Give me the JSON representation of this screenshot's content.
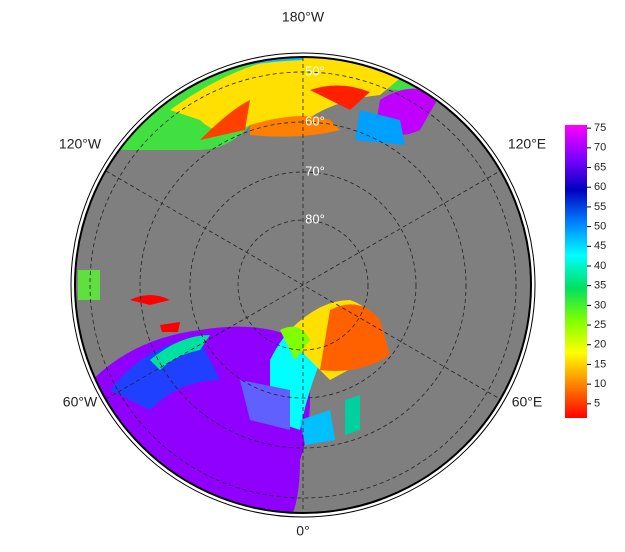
{
  "map": {
    "lon_labels": [
      "180°W",
      "120°W",
      "120°E",
      "60°W",
      "60°E",
      "0°"
    ],
    "lat_labels": [
      "50°",
      "60°",
      "70°",
      "80°"
    ],
    "colorbar": {
      "range": [
        1.4,
        75.8
      ],
      "ticks": [
        5,
        10,
        15,
        20,
        25,
        30,
        35,
        40,
        45,
        50,
        55,
        60,
        65,
        70,
        75
      ],
      "colors": [
        "#ff0000",
        "#ff8000",
        "#ffff00",
        "#80ff00",
        "#00e060",
        "#00ffff",
        "#0080ff",
        "#0000c0",
        "#8000ff",
        "#ff00ff"
      ]
    }
  }
}
